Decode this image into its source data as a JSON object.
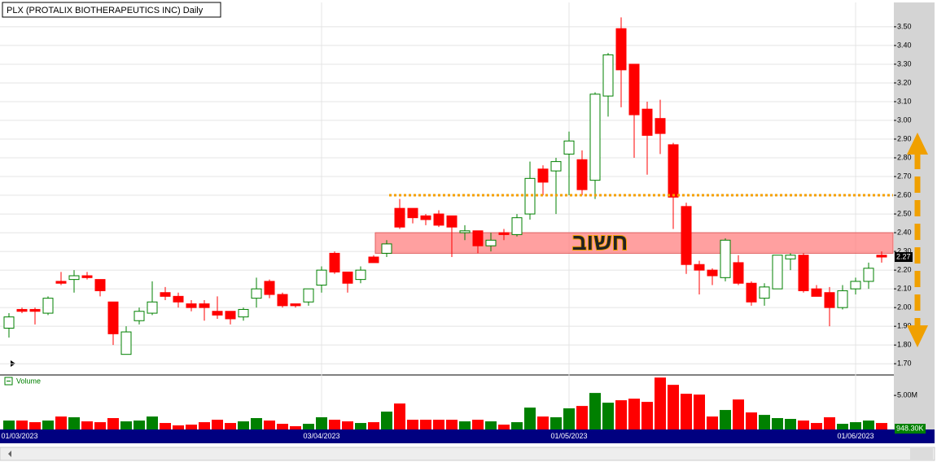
{
  "chart_data": {
    "type": "candlestick",
    "title": "PLX (PROTALIX BIOTHERAPEUTICS INC) Daily",
    "categories": [
      "01/03/2023",
      null,
      null,
      null,
      null,
      null,
      null,
      null,
      null,
      null,
      null,
      null,
      null,
      null,
      null,
      null,
      null,
      null,
      null,
      null,
      null,
      null,
      null,
      null,
      "03/04/2023",
      null,
      null,
      null,
      null,
      null,
      null,
      null,
      null,
      null,
      null,
      null,
      null,
      null,
      null,
      null,
      null,
      null,
      null,
      "01/05/2023",
      null,
      null,
      null,
      null,
      null,
      null,
      null,
      null,
      null,
      null,
      null,
      null,
      null,
      null,
      null,
      null,
      null,
      null,
      null,
      null,
      null,
      "01/06/2023",
      null,
      null
    ],
    "open": [
      1.89,
      1.99,
      1.99,
      1.97,
      2.14,
      2.15,
      2.17,
      2.15,
      2.03,
      1.75,
      1.93,
      1.97,
      2.08,
      2.06,
      2.02,
      2.02,
      1.98,
      1.98,
      1.95,
      2.05,
      2.14,
      2.07,
      2.02,
      2.03,
      2.12,
      2.29,
      2.19,
      2.15,
      2.27,
      2.29,
      2.53,
      2.53,
      2.49,
      2.5,
      2.49,
      2.4,
      2.41,
      2.33,
      2.4,
      2.39,
      2.5,
      2.74,
      2.73,
      2.82,
      2.79,
      2.68,
      3.13,
      3.49,
      3.3,
      3.06,
      3.01,
      2.87,
      2.54,
      2.23,
      2.2,
      2.16,
      2.24,
      2.13,
      2.05,
      2.1,
      2.26,
      2.28,
      2.1,
      2.08,
      2.0,
      2.1,
      2.14,
      2.28
    ],
    "high": [
      1.97,
      2.0,
      2.0,
      2.06,
      2.19,
      2.2,
      2.19,
      2.15,
      2.03,
      1.9,
      2.0,
      2.14,
      2.11,
      2.08,
      2.04,
      2.04,
      2.06,
      1.98,
      2.0,
      2.16,
      2.15,
      2.08,
      2.02,
      2.1,
      2.22,
      2.3,
      2.19,
      2.22,
      2.28,
      2.36,
      2.58,
      2.53,
      2.5,
      2.52,
      2.49,
      2.44,
      2.41,
      2.4,
      2.42,
      2.5,
      2.78,
      2.76,
      2.8,
      2.94,
      2.84,
      3.15,
      3.36,
      3.55,
      3.3,
      3.1,
      3.11,
      2.88,
      2.56,
      2.25,
      2.21,
      2.37,
      2.28,
      2.14,
      2.13,
      2.28,
      2.29,
      2.29,
      2.12,
      2.11,
      2.12,
      2.16,
      2.24,
      2.3
    ],
    "low": [
      1.84,
      1.97,
      1.91,
      1.96,
      2.12,
      2.08,
      2.15,
      2.06,
      1.8,
      1.75,
      1.91,
      1.96,
      2.04,
      2.0,
      1.98,
      1.93,
      1.94,
      1.91,
      1.93,
      2.0,
      2.05,
      2.0,
      2.0,
      2.01,
      2.08,
      2.18,
      2.08,
      2.13,
      2.24,
      2.27,
      2.42,
      2.45,
      2.44,
      2.43,
      2.27,
      2.36,
      2.29,
      2.3,
      2.36,
      2.38,
      2.47,
      2.6,
      2.5,
      2.6,
      2.6,
      2.58,
      3.02,
      3.07,
      2.8,
      2.71,
      2.82,
      2.42,
      2.18,
      2.07,
      2.12,
      2.14,
      2.12,
      2.01,
      2.01,
      2.1,
      2.2,
      2.08,
      2.06,
      1.9,
      1.99,
      2.07,
      2.1,
      2.24
    ],
    "close": [
      1.95,
      1.98,
      1.98,
      2.05,
      2.13,
      2.17,
      2.16,
      2.09,
      1.86,
      1.87,
      1.98,
      2.03,
      2.06,
      2.03,
      2.0,
      2.0,
      1.96,
      1.94,
      1.99,
      2.1,
      2.07,
      2.01,
      2.01,
      2.1,
      2.2,
      2.19,
      2.13,
      2.2,
      2.24,
      2.34,
      2.43,
      2.48,
      2.47,
      2.44,
      2.43,
      2.41,
      2.33,
      2.36,
      2.39,
      2.48,
      2.69,
      2.67,
      2.78,
      2.89,
      2.63,
      3.14,
      3.35,
      3.27,
      3.03,
      2.92,
      2.93,
      2.59,
      2.23,
      2.2,
      2.17,
      2.36,
      2.13,
      2.03,
      2.11,
      2.28,
      2.28,
      2.09,
      2.06,
      2.0,
      2.09,
      2.14,
      2.21,
      2.27
    ],
    "up_color": "#008000",
    "down_color": "#ff0000",
    "ylim": [
      1.64,
      3.63
    ],
    "yticks": [
      {
        "value": 1.7,
        "label": "1.70"
      },
      {
        "value": 1.8,
        "label": "1.80"
      },
      {
        "value": 1.9,
        "label": "1.90"
      },
      {
        "value": 2.0,
        "label": "2.00"
      },
      {
        "value": 2.1,
        "label": "2.10"
      },
      {
        "value": 2.2,
        "label": "2.20"
      },
      {
        "value": 2.3,
        "label": "2.30"
      },
      {
        "value": 2.4,
        "label": "2.40"
      },
      {
        "value": 2.5,
        "label": "2.50"
      },
      {
        "value": 2.6,
        "label": "2.60"
      },
      {
        "value": 2.7,
        "label": "2.70"
      },
      {
        "value": 2.8,
        "label": "2.80"
      },
      {
        "value": 2.9,
        "label": "2.90"
      },
      {
        "value": 3.0,
        "label": "3.00"
      },
      {
        "value": 3.1,
        "label": "3.10"
      },
      {
        "value": 3.2,
        "label": "3.20"
      },
      {
        "value": 3.3,
        "label": "3.30"
      },
      {
        "value": 3.4,
        "label": "3.40"
      },
      {
        "value": 3.5,
        "label": "3.50"
      }
    ],
    "grid": true,
    "annotations": [
      {
        "type": "hline",
        "value": 2.6,
        "color": "#f5a000"
      },
      {
        "type": "band",
        "from": 2.29,
        "to": 2.4,
        "color": "#ff8080",
        "label": "חשוב"
      }
    ],
    "volume": {
      "name": "Volume",
      "values": [
        1.31,
        1.31,
        1.07,
        1.31,
        1.9,
        1.79,
        1.19,
        1.07,
        1.67,
        1.19,
        1.31,
        1.9,
        0.95,
        0.6,
        0.71,
        1.07,
        1.43,
        0.95,
        1.19,
        1.67,
        1.31,
        0.83,
        0.48,
        0.83,
        1.79,
        1.43,
        1.19,
        0.95,
        1.07,
        2.62,
        3.81,
        1.43,
        1.43,
        1.43,
        1.43,
        1.19,
        1.43,
        1.19,
        0.71,
        1.07,
        3.21,
        1.9,
        1.79,
        3.1,
        3.45,
        5.36,
        3.93,
        4.29,
        4.52,
        4.05,
        7.62,
        6.55,
        5.24,
        5.12,
        1.9,
        2.86,
        4.4,
        2.5,
        2.14,
        1.67,
        1.55,
        1.31,
        0.95,
        1.79,
        0.83,
        1.07,
        1.31,
        0.9483
      ],
      "value_labels": [
        null,
        null,
        null,
        null,
        null,
        null,
        null,
        null,
        null,
        null,
        null,
        null,
        null,
        null,
        null,
        null,
        null,
        null,
        null,
        null,
        null,
        null,
        null,
        null,
        null,
        null,
        null,
        null,
        null,
        null,
        null,
        null,
        null,
        null,
        null,
        null,
        null,
        null,
        null,
        null,
        null,
        null,
        null,
        null,
        null,
        null,
        null,
        null,
        null,
        null,
        null,
        null,
        null,
        null,
        null,
        null,
        null,
        null,
        null,
        null,
        null,
        null,
        null,
        null,
        null,
        null,
        null,
        "948.30K"
      ],
      "ylim": [
        0,
        8
      ],
      "yticks": [
        {
          "value": 5,
          "label": "5.00M"
        }
      ]
    }
  }
}
